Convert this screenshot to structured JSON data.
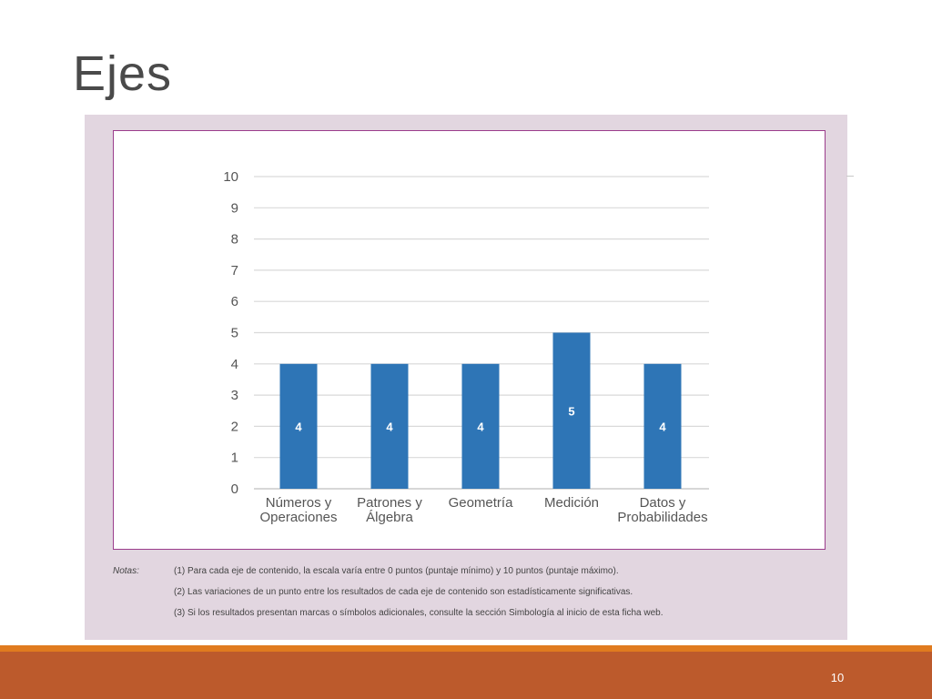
{
  "slide": {
    "title": "Ejes",
    "page_number": "10"
  },
  "notes": {
    "heading": "Notas:",
    "lines": [
      "(1) Para cada eje de contenido, la escala varía entre 0 puntos (puntaje mínimo) y 10 puntos (puntaje máximo).",
      "(2) Las variaciones de un punto entre los resultados de cada eje de contenido son estadísticamente significativas.",
      "(3) Si los resultados presentan marcas o símbolos adicionales, consulte la sección Simbología al inicio de esta ficha web."
    ]
  },
  "colors": {
    "bar": "#2e75b6",
    "panel": "#e2d6e0",
    "frame": "#9b3d8c",
    "footer": "#bc5a2c",
    "footer_accent": "#e07b1f"
  },
  "chart_data": {
    "type": "bar",
    "categories": [
      [
        "Números y",
        "Operaciones"
      ],
      [
        "Patrones y",
        "Álgebra"
      ],
      [
        "Geometría"
      ],
      [
        "Medición"
      ],
      [
        "Datos y",
        "Probabilidades"
      ]
    ],
    "values": [
      4,
      4,
      4,
      5,
      4
    ],
    "data_labels": [
      "4",
      "4",
      "4",
      "5",
      "4"
    ],
    "ylim": [
      0,
      10
    ],
    "yticks": [
      0,
      1,
      2,
      3,
      4,
      5,
      6,
      7,
      8,
      9,
      10
    ],
    "grid": true,
    "legend": "none",
    "title": "",
    "xlabel": "",
    "ylabel": ""
  }
}
